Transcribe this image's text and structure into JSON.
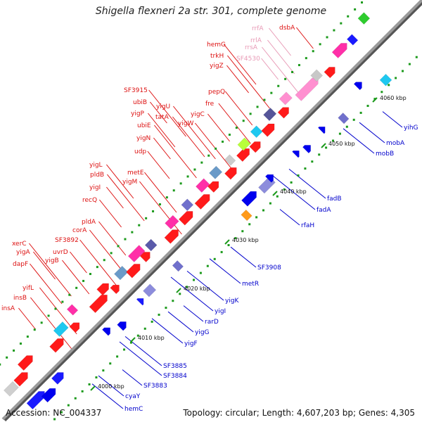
{
  "header": {
    "title": "Shigella flexneri 2a str. 301, complete genome"
  },
  "footer": {
    "accession": "Accession: NC_004337",
    "summary": "Topology: circular; Length: 4,607,203 bp; Genes: 4,305"
  },
  "colors": {
    "forward_label": "#dd1111",
    "reverse_label": "#0000cc",
    "rna_label": "#e89ab6",
    "backbone": "#8c8c8c"
  },
  "ticks": [
    "4000 kbp",
    "4010 kbp",
    "4020 kbp",
    "4030 kbp",
    "4040 kbp",
    "4050 kbp",
    "4060 kbp"
  ],
  "forward_labels": [
    {
      "text": "dsbA",
      "kind": "gene"
    },
    {
      "text": "rrfA",
      "kind": "rna"
    },
    {
      "text": "rrlA",
      "kind": "rna"
    },
    {
      "text": "hemG",
      "kind": "gene"
    },
    {
      "text": "rrsA",
      "kind": "rna"
    },
    {
      "text": "trkH",
      "kind": "gene"
    },
    {
      "text": "SF4530",
      "kind": "rna"
    },
    {
      "text": "yigZ",
      "kind": "gene"
    },
    {
      "text": "pepQ",
      "kind": "gene"
    },
    {
      "text": "fre",
      "kind": "gene"
    },
    {
      "text": "SF3915",
      "kind": "gene"
    },
    {
      "text": "yigU",
      "kind": "gene"
    },
    {
      "text": "ubiB",
      "kind": "gene"
    },
    {
      "text": "yigC",
      "kind": "gene"
    },
    {
      "text": "yigP",
      "kind": "gene"
    },
    {
      "text": "tatA",
      "kind": "gene"
    },
    {
      "text": "yigW",
      "kind": "gene"
    },
    {
      "text": "ubiE",
      "kind": "gene"
    },
    {
      "text": "yigN",
      "kind": "gene"
    },
    {
      "text": "udp",
      "kind": "gene"
    },
    {
      "text": "yigL",
      "kind": "gene"
    },
    {
      "text": "metE",
      "kind": "gene"
    },
    {
      "text": "pldB",
      "kind": "gene"
    },
    {
      "text": "yigM",
      "kind": "gene"
    },
    {
      "text": "yigI",
      "kind": "gene"
    },
    {
      "text": "recQ",
      "kind": "gene"
    },
    {
      "text": "pldA",
      "kind": "gene"
    },
    {
      "text": "corA",
      "kind": "gene"
    },
    {
      "text": "SF3892",
      "kind": "gene"
    },
    {
      "text": "xerC",
      "kind": "gene"
    },
    {
      "text": "uvrD",
      "kind": "gene"
    },
    {
      "text": "yigA",
      "kind": "gene"
    },
    {
      "text": "yigB",
      "kind": "gene"
    },
    {
      "text": "dapF",
      "kind": "gene"
    },
    {
      "text": "yifL",
      "kind": "gene"
    },
    {
      "text": "insB",
      "kind": "gene"
    },
    {
      "text": "insA",
      "kind": "gene"
    }
  ],
  "reverse_labels": [
    {
      "text": "yihG"
    },
    {
      "text": "mobA"
    },
    {
      "text": "mobB"
    },
    {
      "text": "fadB"
    },
    {
      "text": "fadA"
    },
    {
      "text": "rfaH"
    },
    {
      "text": "SF3908"
    },
    {
      "text": "metR"
    },
    {
      "text": "yigK"
    },
    {
      "text": "yigI"
    },
    {
      "text": "rarD"
    },
    {
      "text": "yigG"
    },
    {
      "text": "yigF"
    },
    {
      "text": "SF3885"
    },
    {
      "text": "SF3884"
    },
    {
      "text": "SF3883"
    },
    {
      "text": "cyaY"
    },
    {
      "text": "hemC"
    }
  ]
}
